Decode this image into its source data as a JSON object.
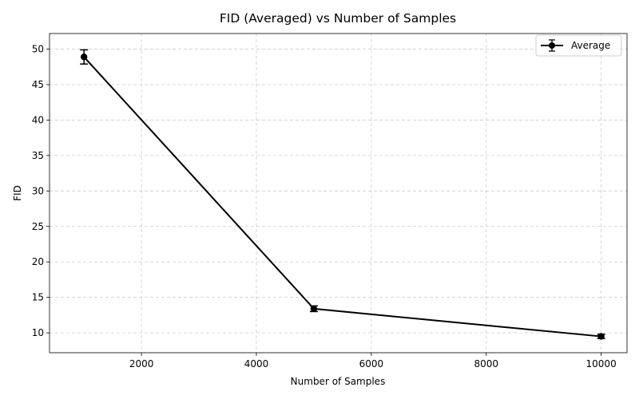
{
  "chart_data": {
    "type": "line",
    "title": "FID (Averaged) vs Number of Samples",
    "xlabel": "Number of Samples",
    "ylabel": "FID",
    "xlim": [
      400,
      10450
    ],
    "ylim": [
      7.2,
      52.2
    ],
    "xticks": [
      2000,
      4000,
      6000,
      8000,
      10000
    ],
    "yticks": [
      10,
      15,
      20,
      25,
      30,
      35,
      40,
      45,
      50
    ],
    "grid": true,
    "legend_position": "top-right",
    "series": [
      {
        "name": "Average",
        "color": "#000000",
        "marker": "circle",
        "x": [
          1000,
          5000,
          10000
        ],
        "y": [
          48.9,
          13.4,
          9.5
        ],
        "yerr": [
          1.0,
          0.4,
          0.3
        ]
      }
    ]
  }
}
